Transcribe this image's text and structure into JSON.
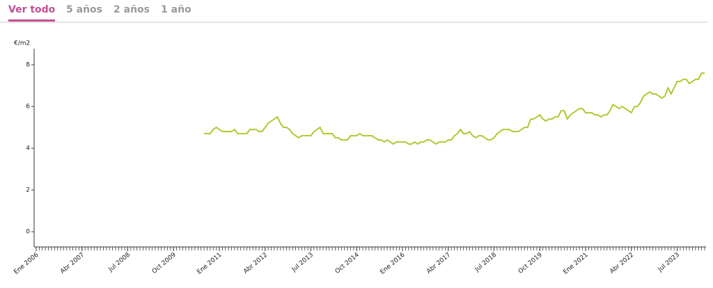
{
  "tabs": [
    "Ver todo",
    "5 años",
    "2 años",
    "1 año"
  ],
  "active_tab": 0,
  "chart_data": {
    "type": "line",
    "ylabel": "€/m2",
    "x": [
      "2010-08",
      "2010-09",
      "2010-10",
      "2010-11",
      "2010-12",
      "2011-01",
      "2011-02",
      "2011-03",
      "2011-04",
      "2011-05",
      "2011-06",
      "2011-07",
      "2011-08",
      "2011-09",
      "2011-10",
      "2011-11",
      "2011-12",
      "2012-01",
      "2012-02",
      "2012-03",
      "2012-04",
      "2012-05",
      "2012-06",
      "2012-07",
      "2012-08",
      "2012-09",
      "2012-10",
      "2012-11",
      "2012-12",
      "2013-01",
      "2013-02",
      "2013-03",
      "2013-04",
      "2013-05",
      "2013-06",
      "2013-07",
      "2013-08",
      "2013-09",
      "2013-10",
      "2013-11",
      "2013-12",
      "2014-01",
      "2014-02",
      "2014-03",
      "2014-04",
      "2014-05",
      "2014-06",
      "2014-07",
      "2014-08",
      "2014-09",
      "2014-10",
      "2014-11",
      "2014-12",
      "2015-01",
      "2015-02",
      "2015-03",
      "2015-04",
      "2015-05",
      "2015-06",
      "2015-07",
      "2015-08",
      "2015-09",
      "2015-10",
      "2015-11",
      "2015-12",
      "2016-01",
      "2016-02",
      "2016-03",
      "2016-04",
      "2016-05",
      "2016-06",
      "2016-07",
      "2016-08",
      "2016-09",
      "2016-10",
      "2016-11",
      "2016-12",
      "2017-01",
      "2017-02",
      "2017-03",
      "2017-04",
      "2017-05",
      "2017-06",
      "2017-07",
      "2017-08",
      "2017-09",
      "2017-10",
      "2017-11",
      "2017-12",
      "2018-01",
      "2018-02",
      "2018-03",
      "2018-04",
      "2018-05",
      "2018-06",
      "2018-07",
      "2018-08",
      "2018-09",
      "2018-10",
      "2018-11",
      "2018-12",
      "2019-01",
      "2019-02",
      "2019-03",
      "2019-04",
      "2019-05",
      "2019-06",
      "2019-07",
      "2019-08",
      "2019-09",
      "2019-10",
      "2019-11",
      "2019-12",
      "2020-01",
      "2020-02",
      "2020-03",
      "2020-04",
      "2020-05",
      "2020-06",
      "2020-07",
      "2020-08",
      "2020-09",
      "2020-10",
      "2020-11",
      "2020-12",
      "2021-01",
      "2021-02",
      "2021-03",
      "2021-04",
      "2021-05",
      "2021-06",
      "2021-07",
      "2021-08",
      "2021-09",
      "2021-10",
      "2021-11",
      "2021-12",
      "2022-01",
      "2022-02",
      "2022-03",
      "2022-04",
      "2022-05",
      "2022-06",
      "2022-07",
      "2022-08",
      "2022-09",
      "2022-10",
      "2022-11",
      "2022-12",
      "2023-01",
      "2023-02",
      "2023-03",
      "2023-04",
      "2023-05",
      "2023-06",
      "2023-07",
      "2023-08",
      "2023-09",
      "2023-10",
      "2023-11",
      "2023-12",
      "2024-01",
      "2024-02",
      "2024-03",
      "2024-04"
    ],
    "series": [
      {
        "color": "#b5c632",
        "values": [
          4.7,
          4.7,
          4.7,
          4.9,
          5.0,
          4.9,
          4.8,
          4.8,
          4.8,
          4.8,
          4.9,
          4.7,
          4.7,
          4.7,
          4.7,
          4.9,
          4.9,
          4.9,
          4.8,
          4.8,
          5.0,
          5.2,
          5.3,
          5.4,
          5.5,
          5.2,
          5.0,
          5.0,
          4.9,
          4.7,
          4.6,
          4.5,
          4.6,
          4.6,
          4.6,
          4.6,
          4.8,
          4.9,
          5.0,
          4.7,
          4.7,
          4.7,
          4.7,
          4.5,
          4.5,
          4.4,
          4.4,
          4.4,
          4.6,
          4.6,
          4.6,
          4.7,
          4.6,
          4.6,
          4.6,
          4.6,
          4.5,
          4.4,
          4.4,
          4.3,
          4.4,
          4.3,
          4.2,
          4.3,
          4.3,
          4.3,
          4.3,
          4.2,
          4.2,
          4.3,
          4.2,
          4.3,
          4.3,
          4.4,
          4.4,
          4.3,
          4.2,
          4.3,
          4.3,
          4.3,
          4.4,
          4.4,
          4.6,
          4.7,
          4.9,
          4.7,
          4.7,
          4.8,
          4.6,
          4.5,
          4.6,
          4.6,
          4.5,
          4.4,
          4.4,
          4.5,
          4.7,
          4.8,
          4.9,
          4.9,
          4.9,
          4.8,
          4.8,
          4.8,
          4.9,
          5.0,
          5.0,
          5.4,
          5.4,
          5.5,
          5.6,
          5.4,
          5.3,
          5.4,
          5.4,
          5.5,
          5.5,
          5.8,
          5.8,
          5.4,
          5.6,
          5.7,
          5.8,
          5.9,
          5.9,
          5.7,
          5.7,
          5.7,
          5.6,
          5.6,
          5.5,
          5.6,
          5.6,
          5.8,
          6.1,
          6.0,
          5.9,
          6.0,
          5.9,
          5.8,
          5.7,
          6.0,
          6.0,
          6.2,
          6.5,
          6.6,
          6.7,
          6.6,
          6.6,
          6.5,
          6.4,
          6.5,
          6.9,
          6.6,
          6.9,
          7.2,
          7.2,
          7.3,
          7.3,
          7.1,
          7.2,
          7.3,
          7.3,
          7.6,
          7.6
        ]
      }
    ],
    "xlim": [
      "2006-01",
      "2024-04"
    ],
    "xticks": [
      {
        "value": "2006-01",
        "label": "Ene 2006"
      },
      {
        "value": "2007-04",
        "label": "Abr 2007"
      },
      {
        "value": "2008-07",
        "label": "Jul 2008"
      },
      {
        "value": "2009-10",
        "label": "Oct 2009"
      },
      {
        "value": "2011-01",
        "label": "Ene 2011"
      },
      {
        "value": "2012-04",
        "label": "Abr 2012"
      },
      {
        "value": "2013-07",
        "label": "Jul 2013"
      },
      {
        "value": "2014-10",
        "label": "Oct 2014"
      },
      {
        "value": "2016-01",
        "label": "Ene 2016"
      },
      {
        "value": "2017-04",
        "label": "Abr 2017"
      },
      {
        "value": "2018-07",
        "label": "Jul 2018"
      },
      {
        "value": "2019-10",
        "label": "Oct 2019"
      },
      {
        "value": "2021-01",
        "label": "Ene 2021"
      },
      {
        "value": "2022-04",
        "label": "Abr 2022"
      },
      {
        "value": "2023-07",
        "label": "Jul 2023"
      }
    ],
    "ylim": [
      -0.73,
      8.77
    ],
    "yticks": [
      0,
      2,
      4,
      6,
      8
    ],
    "grid": false
  }
}
